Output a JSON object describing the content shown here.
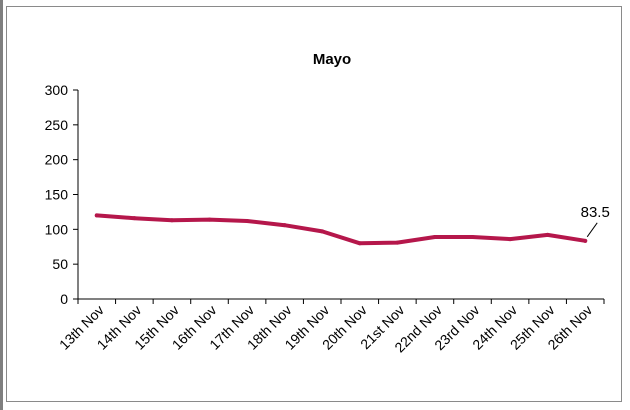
{
  "chart_data": {
    "type": "line",
    "title": "Mayo",
    "xlabel": "",
    "ylabel": "",
    "categories": [
      "13th Nov",
      "14th Nov",
      "15th Nov",
      "16th Nov",
      "17th Nov",
      "18th Nov",
      "19th Nov",
      "20th Nov",
      "21st Nov",
      "22nd Nov",
      "23rd  Nov",
      "24th Nov",
      "25th Nov",
      "26th Nov"
    ],
    "series": [
      {
        "values": [
          120,
          116,
          113,
          114,
          112,
          106,
          97,
          80,
          81,
          89,
          89,
          86,
          92,
          83.5
        ],
        "color": "#b5174b"
      }
    ],
    "ylim": [
      0,
      300
    ],
    "yticks": [
      0,
      50,
      100,
      150,
      200,
      250,
      300
    ],
    "grid": false,
    "legend": "none",
    "data_labels": [
      {
        "index": 13,
        "text": "83.5"
      }
    ]
  }
}
